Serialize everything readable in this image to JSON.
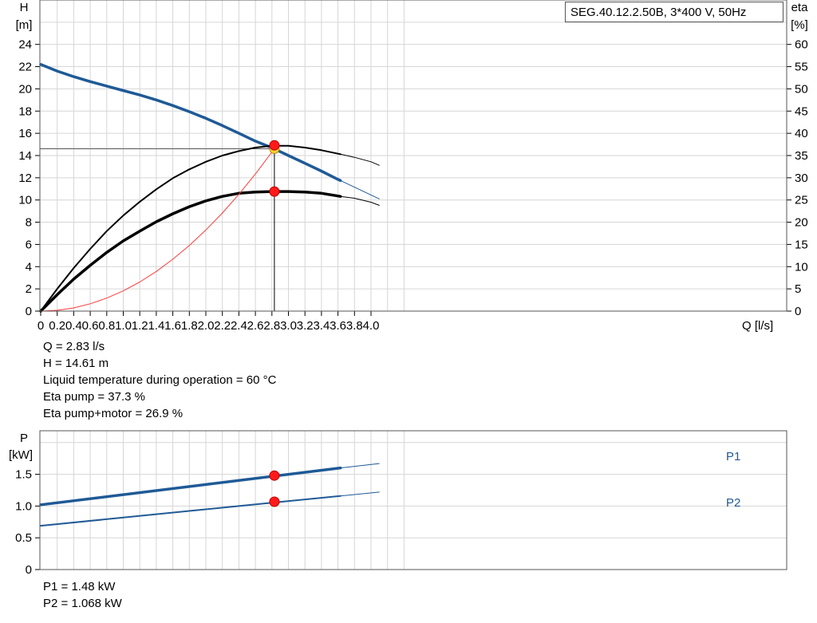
{
  "chart_data": [
    {
      "type": "line",
      "title": "SEG.40.12.2.50B, 3*400 V, 50Hz",
      "xlabel": "Q [l/s]",
      "ylabel_top": "H",
      "ylabel_unit": "[m]",
      "y2label_top": "eta",
      "y2label_unit": "[%]",
      "xlim": [
        0,
        4.4
      ],
      "ylim": [
        0,
        28
      ],
      "y2lim": [
        0,
        70
      ],
      "xticks": [
        "0",
        "0.2",
        "0.4",
        "0.6",
        "0.8",
        "1.0",
        "1.2",
        "1.4",
        "1.6",
        "1.8",
        "2.0",
        "2.2",
        "2.4",
        "2.6",
        "2.8",
        "3.0",
        "3.2",
        "3.4",
        "3.6",
        "3.8",
        "4.0"
      ],
      "yticks": [
        "0",
        "2",
        "4",
        "6",
        "8",
        "10",
        "12",
        "14",
        "16",
        "18",
        "20",
        "22",
        "24"
      ],
      "y2ticks": [
        "0",
        "5",
        "10",
        "15",
        "20",
        "25",
        "30",
        "35",
        "40",
        "45",
        "50",
        "55",
        "60"
      ],
      "grid": true,
      "series": [
        {
          "key": "H",
          "axis": "left",
          "color": "#1f5a96",
          "x": [
            0,
            0.2,
            0.4,
            0.6,
            0.8,
            1.0,
            1.2,
            1.4,
            1.6,
            1.8,
            2.0,
            2.2,
            2.4,
            2.6,
            2.8,
            3.0,
            3.2,
            3.4,
            3.6,
            3.63
          ],
          "y": [
            22.2,
            21.6,
            21.1,
            20.65,
            20.25,
            19.85,
            19.45,
            19.0,
            18.5,
            17.95,
            17.35,
            16.7,
            16.0,
            15.3,
            14.7,
            14.0,
            13.3,
            12.6,
            11.85,
            11.75
          ],
          "ext_x": [
            3.63,
            4.1
          ],
          "ext_y": [
            11.75,
            10.1
          ]
        },
        {
          "key": "eta_pump",
          "axis": "right",
          "color": "#000000",
          "x": [
            0,
            0.2,
            0.4,
            0.6,
            0.8,
            1.0,
            1.2,
            1.4,
            1.6,
            1.8,
            2.0,
            2.2,
            2.4,
            2.6,
            2.8,
            3.0,
            3.2,
            3.4,
            3.63
          ],
          "y": [
            0,
            5.0,
            9.7,
            14.0,
            18.0,
            21.5,
            24.6,
            27.4,
            29.9,
            31.9,
            33.6,
            35.0,
            36.0,
            36.8,
            37.2,
            37.2,
            36.8,
            36.2,
            35.3
          ],
          "ext_x": [
            3.63,
            3.8,
            4.0,
            4.1
          ],
          "ext_y": [
            35.3,
            34.6,
            33.6,
            32.8
          ]
        },
        {
          "key": "eta_pump_motor",
          "axis": "right",
          "color": "#000000",
          "x": [
            0,
            0.2,
            0.4,
            0.6,
            0.8,
            1.0,
            1.2,
            1.4,
            1.6,
            1.8,
            2.0,
            2.2,
            2.4,
            2.6,
            2.8,
            3.0,
            3.2,
            3.4,
            3.63
          ],
          "y": [
            0,
            3.7,
            7.2,
            10.3,
            13.2,
            15.8,
            18.0,
            20.1,
            21.9,
            23.5,
            24.8,
            25.8,
            26.5,
            26.8,
            26.9,
            26.9,
            26.8,
            26.5,
            25.8
          ],
          "ext_x": [
            3.63,
            3.8,
            4.0,
            4.1
          ],
          "ext_y": [
            25.8,
            25.4,
            24.5,
            23.8
          ]
        },
        {
          "key": "system_curve",
          "axis": "left",
          "color": "#ff3b3b",
          "x": [
            0,
            0.2,
            0.4,
            0.6,
            0.8,
            1.0,
            1.2,
            1.4,
            1.6,
            1.8,
            2.0,
            2.2,
            2.4,
            2.6,
            2.83
          ],
          "y": [
            0,
            0.07,
            0.29,
            0.66,
            1.17,
            1.82,
            2.62,
            3.57,
            4.67,
            5.91,
            7.3,
            8.83,
            10.51,
            12.34,
            14.61
          ]
        }
      ],
      "operating_point": {
        "q": 2.83,
        "h": 14.61,
        "eta_pump": 37.3,
        "eta_pump_motor": 26.9
      }
    },
    {
      "type": "line",
      "ylabel_top": "P",
      "ylabel_unit": "[kW]",
      "xlim": [
        0,
        4.4
      ],
      "ylim": [
        0,
        2.0
      ],
      "yticks": [
        "0",
        "0.5",
        "1.0",
        "1.5"
      ],
      "grid": true,
      "series": [
        {
          "name": "P1",
          "color": "#1f5a96",
          "x": [
            0,
            3.63
          ],
          "y": [
            1.02,
            1.6
          ],
          "ext_x": [
            3.63,
            4.1
          ],
          "ext_y": [
            1.6,
            1.67
          ]
        },
        {
          "name": "P2",
          "color": "#1f5a96",
          "x": [
            0,
            3.63
          ],
          "y": [
            0.69,
            1.16
          ],
          "ext_x": [
            3.63,
            4.1
          ],
          "ext_y": [
            1.16,
            1.22
          ]
        }
      ],
      "operating_point": {
        "p1": 1.48,
        "p2": 1.068
      }
    }
  ],
  "info_top": [
    "Q = 2.83 l/s",
    "H = 14.61 m",
    "Liquid temperature during operation = 60 °C",
    "Eta pump = 37.3 %",
    "Eta pump+motor = 26.9 %"
  ],
  "info_bottom": [
    "P1 = 1.48 kW",
    "P2 = 1.068 kW"
  ]
}
